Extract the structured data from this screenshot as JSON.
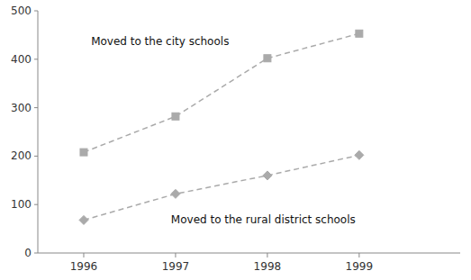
{
  "chart_data": {
    "type": "line",
    "x": [
      1996,
      1997,
      1998,
      1999
    ],
    "series": [
      {
        "color": "#aaaaaa",
        "line_style": "dashed",
        "marker": "square",
        "values": [
          208,
          282,
          402,
          453
        ]
      },
      {
        "color": "#aaaaaa",
        "line_style": "dashed",
        "marker": "diamond",
        "values": [
          68,
          122,
          160,
          202
        ]
      }
    ],
    "annotations": [
      {
        "text": "Moved to the city schools",
        "x": 1996.08,
        "y": 430
      },
      {
        "text": "Moved to the rural district schools",
        "x": 1996.95,
        "y": 62
      }
    ],
    "xlim": [
      1995.5,
      2000.1
    ],
    "xticks": [
      1996,
      1997,
      1998,
      1999
    ],
    "ylim": [
      0,
      500
    ],
    "yticks": [
      0,
      100,
      200,
      300,
      400,
      500
    ],
    "grid": false
  }
}
